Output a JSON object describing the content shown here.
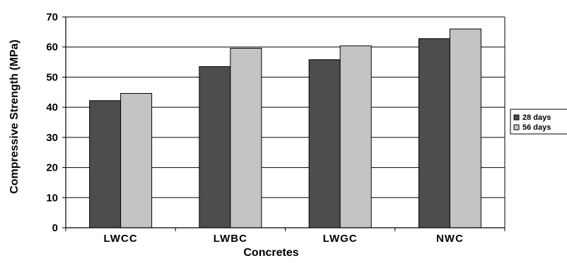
{
  "chart_data": {
    "type": "bar",
    "title": "",
    "xlabel": "Concretes",
    "ylabel": "Compressive Strength (MPa)",
    "categories": [
      "LWCC",
      "LWBC",
      "LWGC",
      "NWC"
    ],
    "series": [
      {
        "name": "28 days",
        "values": [
          42.2,
          53.5,
          55.8,
          62.8
        ],
        "color": "#4d4d4d"
      },
      {
        "name": "56 days",
        "values": [
          44.6,
          59.6,
          60.4,
          66.0
        ],
        "color": "#c4c4c4"
      }
    ],
    "ylim": [
      0,
      70
    ],
    "yticks": [
      "0",
      "10",
      "20",
      "30",
      "40",
      "50",
      "60",
      "70"
    ],
    "grid": true,
    "legend_position": "right"
  }
}
